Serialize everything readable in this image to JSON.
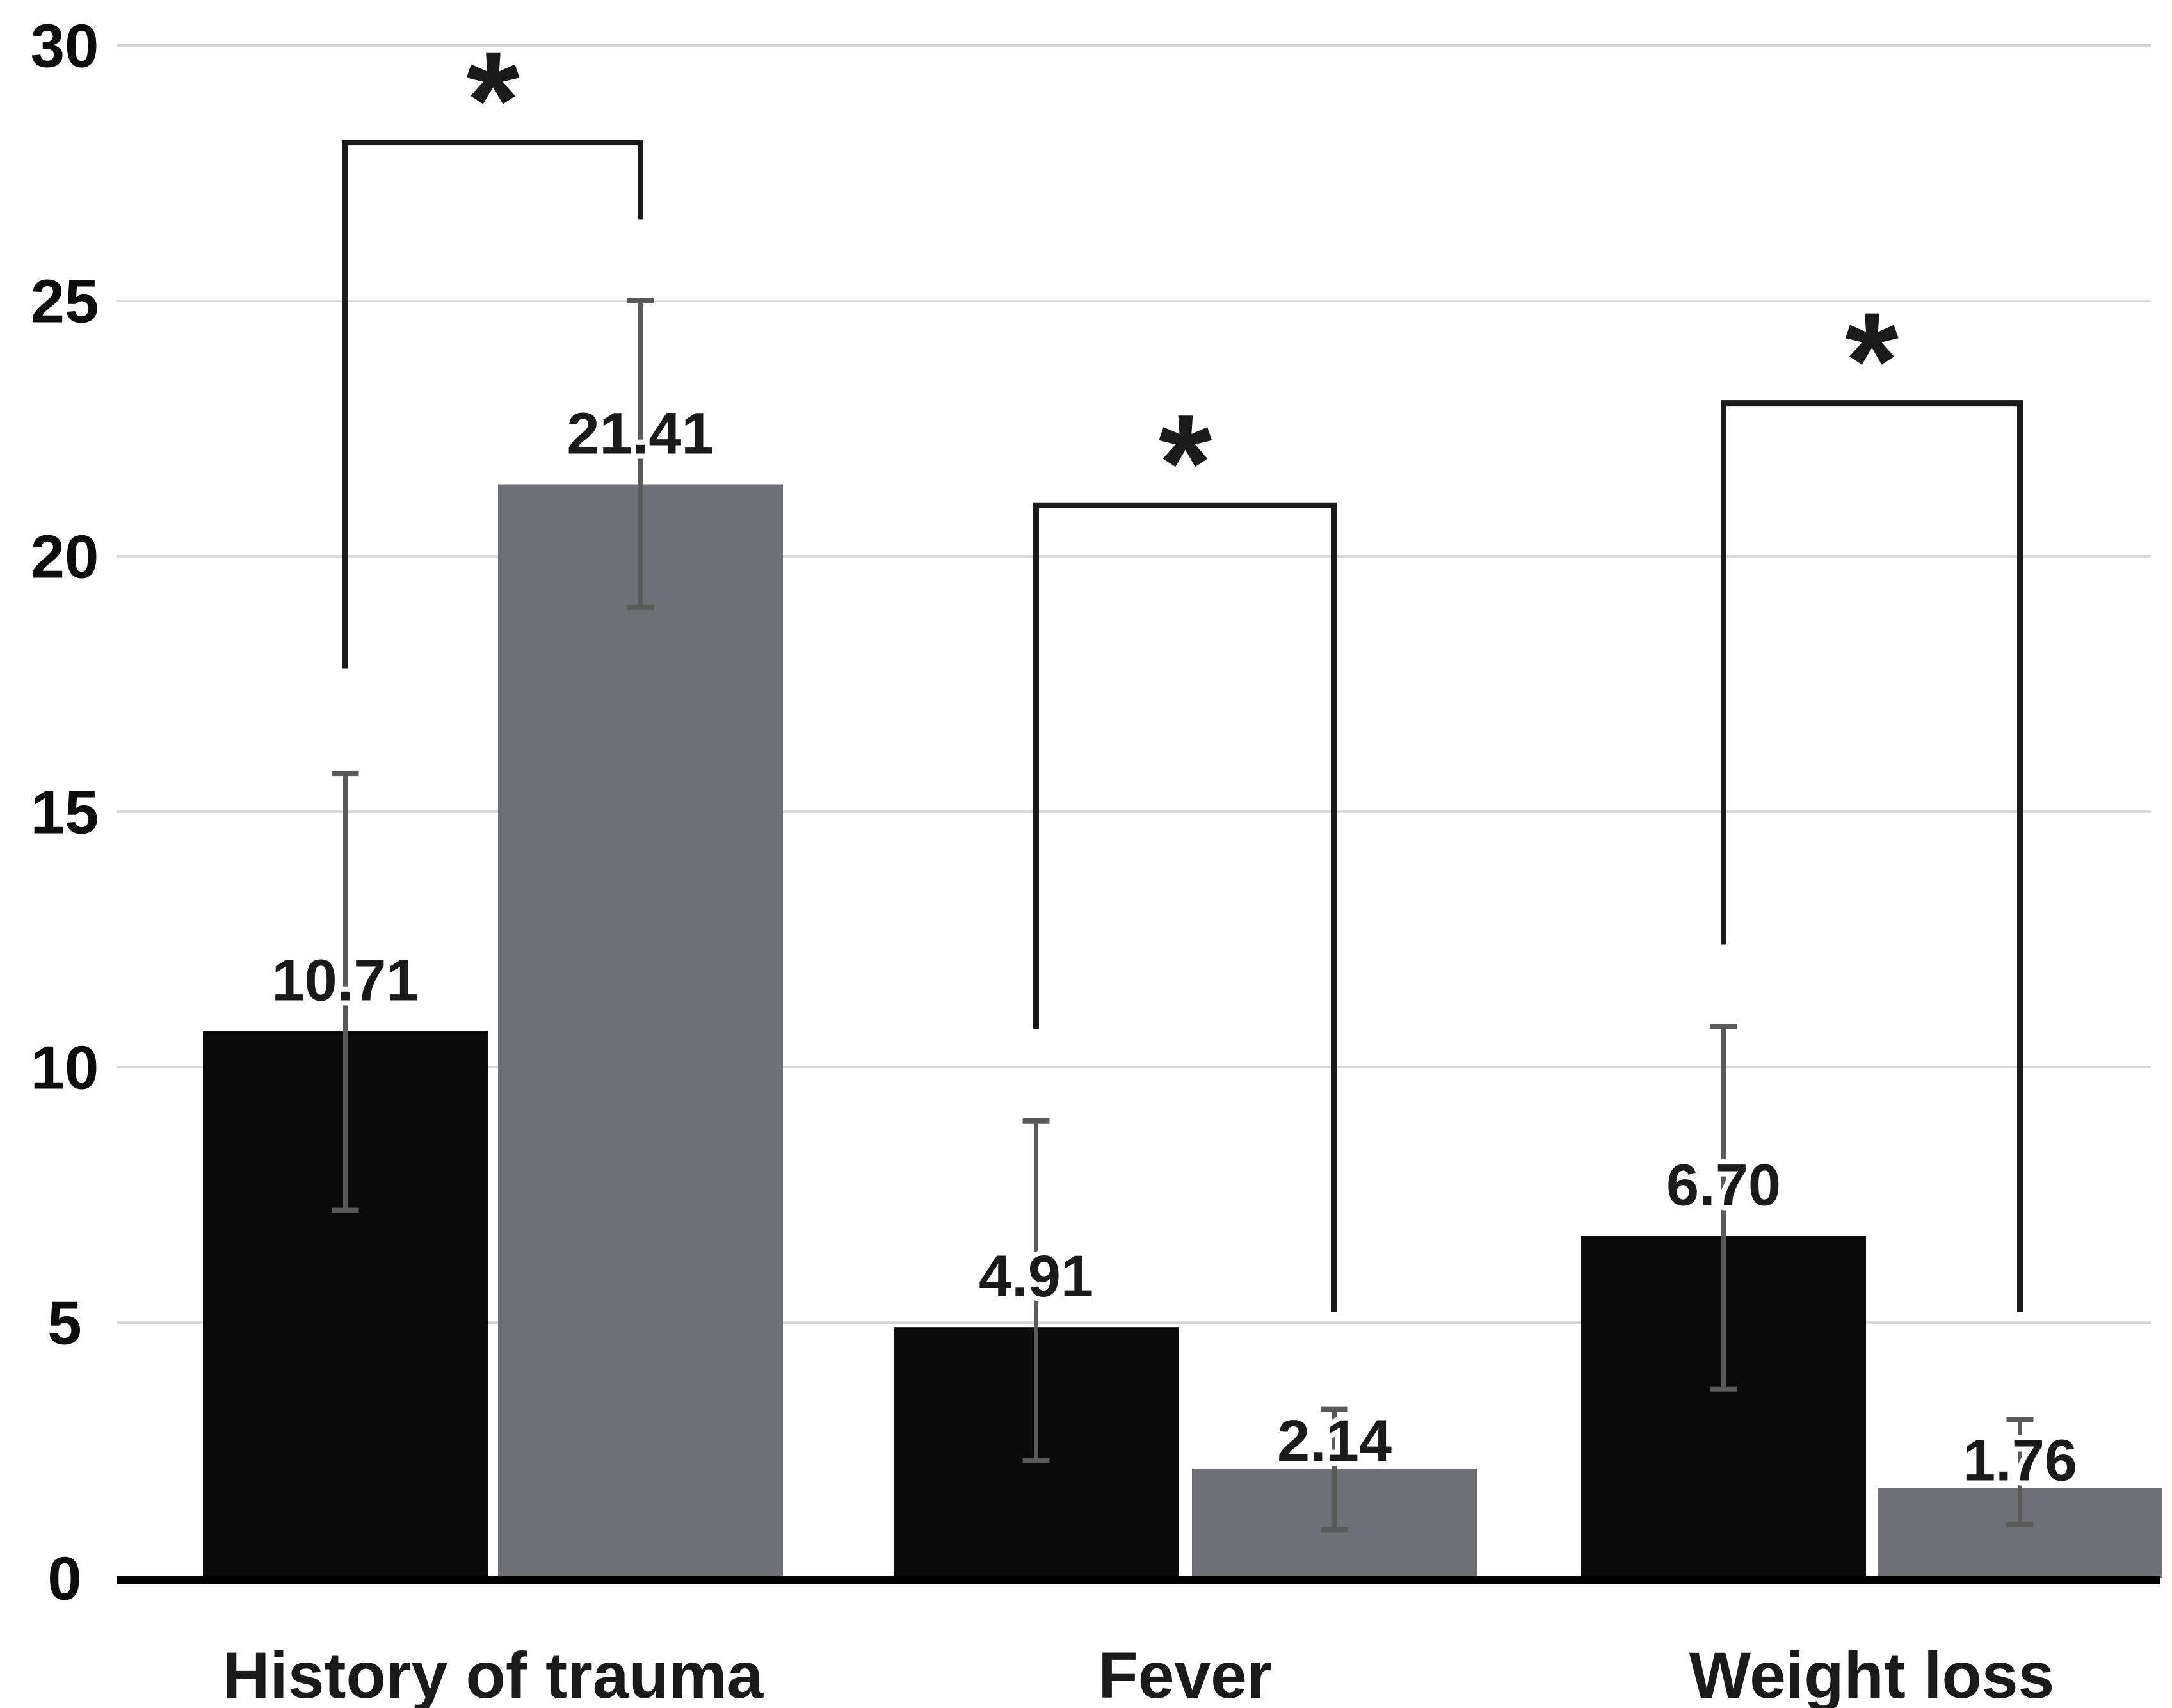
{
  "figure": {
    "background_color": "#ffffff",
    "title": "",
    "legend": "none"
  },
  "chart_data": {
    "type": "bar",
    "title": "",
    "xlabel": "",
    "ylabel": "",
    "categories": [
      "History of trauma",
      "Fever",
      "Weight loss"
    ],
    "series": [
      {
        "name": "black",
        "color": "#0b0b0c",
        "values": [
          10.71,
          4.91,
          6.7
        ],
        "value_labels": [
          "10.71",
          "4.91",
          "6.70"
        ],
        "error_low": [
          7.2,
          2.3,
          3.7
        ],
        "error_high": [
          15.75,
          8.95,
          10.8
        ]
      },
      {
        "name": "gray",
        "color": "#6e7073",
        "values": [
          21.41,
          2.14,
          1.76
        ],
        "value_labels": [
          "21.41",
          "2.14",
          "1.76"
        ],
        "error_low": [
          19.0,
          0.95,
          1.05
        ],
        "error_high": [
          25.0,
          3.3,
          3.1
        ]
      }
    ],
    "ylim": [
      0,
      30
    ],
    "y_ticks": [
      0,
      5,
      10,
      15,
      20,
      25,
      30
    ],
    "y_tick_labels": [
      "0",
      "5",
      "10",
      "15",
      "20",
      "25",
      "30"
    ],
    "grid": true,
    "gridline_color": "#d9d9d9",
    "axis_color": "#000000",
    "error_bar_color": "#595959",
    "annotation_color": "#1a1a1a",
    "value_label_color": "#1a1a1a",
    "tick_label_color": "#0d0d0d",
    "legend_position": "none",
    "significance_brackets": [
      {
        "category": "History of trauma",
        "label": "*",
        "top_value": 28.1,
        "left_series": "black",
        "right_series": "gray",
        "left_drop_to_value": 17.8,
        "right_drop_to_value": 26.6
      },
      {
        "category": "Fever",
        "label": "*",
        "top_value": 21.0,
        "left_series": "black",
        "right_series": "gray",
        "left_drop_to_value": 10.75,
        "right_drop_to_value": 5.2
      },
      {
        "category": "Weight loss",
        "label": "*",
        "top_value": 23.0,
        "left_series": "black",
        "right_series": "gray",
        "left_drop_to_value": 12.4,
        "right_drop_to_value": 5.2
      }
    ]
  }
}
